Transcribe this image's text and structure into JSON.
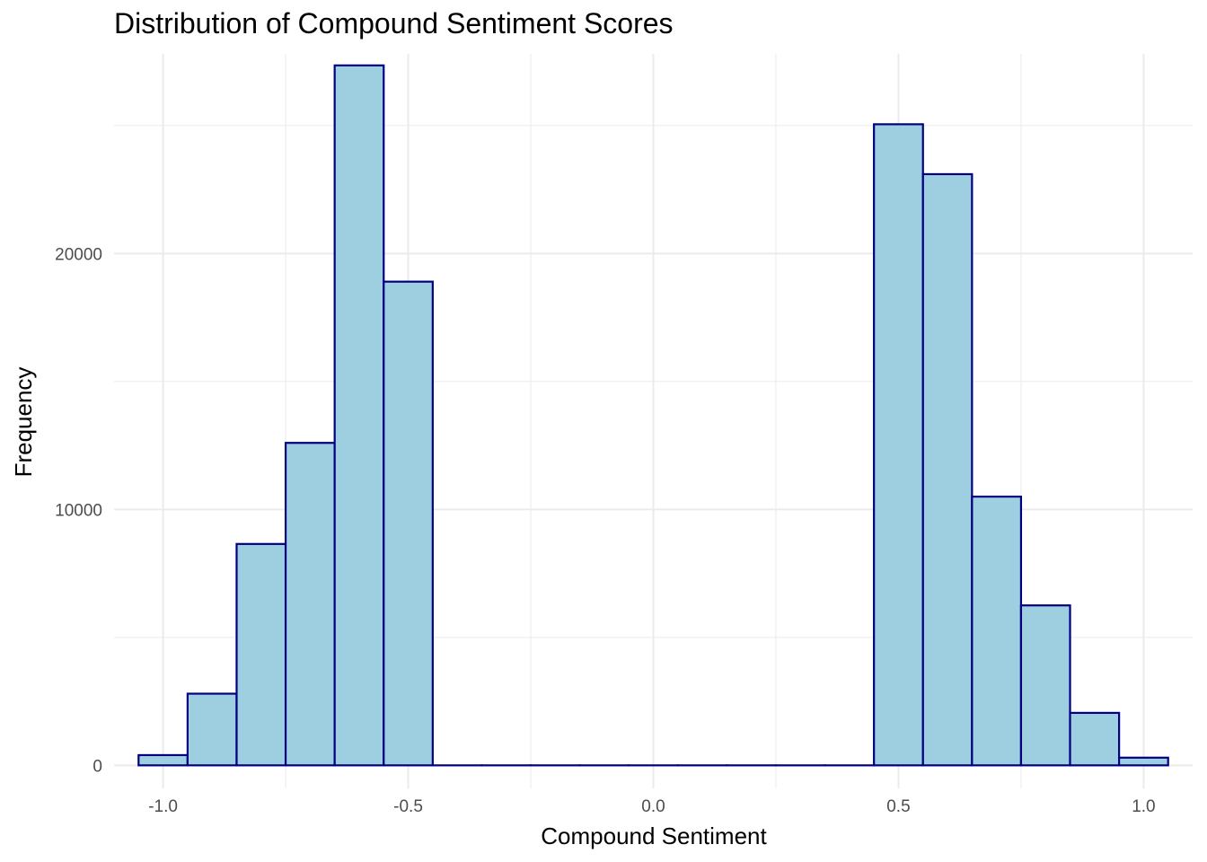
{
  "chart_data": {
    "type": "bar",
    "title": "Distribution of Compound Sentiment Scores",
    "xlabel": "Compound Sentiment",
    "ylabel": "Frequency",
    "xlim": [
      -1.1,
      1.1
    ],
    "ylim": [
      -900,
      27800
    ],
    "x_ticks": [
      -1.0,
      -0.5,
      0.0,
      0.5,
      1.0
    ],
    "x_tick_labels": [
      "-1.0",
      "-0.5",
      "0.0",
      "0.5",
      "1.0"
    ],
    "y_ticks": [
      0,
      10000,
      20000
    ],
    "y_tick_labels": [
      "0",
      "10000",
      "20000"
    ],
    "bin_width": 0.1,
    "bins": [
      {
        "x0": -1.05,
        "x1": -0.95,
        "count": 400
      },
      {
        "x0": -0.95,
        "x1": -0.85,
        "count": 2800
      },
      {
        "x0": -0.85,
        "x1": -0.75,
        "count": 8650
      },
      {
        "x0": -0.75,
        "x1": -0.65,
        "count": 12600
      },
      {
        "x0": -0.65,
        "x1": -0.55,
        "count": 27350
      },
      {
        "x0": -0.55,
        "x1": -0.45,
        "count": 18900
      },
      {
        "x0": -0.45,
        "x1": -0.35,
        "count": 0
      },
      {
        "x0": -0.35,
        "x1": -0.25,
        "count": 0
      },
      {
        "x0": -0.25,
        "x1": -0.15,
        "count": 0
      },
      {
        "x0": -0.15,
        "x1": -0.05,
        "count": 0
      },
      {
        "x0": -0.05,
        "x1": 0.05,
        "count": 0
      },
      {
        "x0": 0.05,
        "x1": 0.15,
        "count": 0
      },
      {
        "x0": 0.15,
        "x1": 0.25,
        "count": 0
      },
      {
        "x0": 0.25,
        "x1": 0.35,
        "count": 0
      },
      {
        "x0": 0.35,
        "x1": 0.45,
        "count": 0
      },
      {
        "x0": 0.45,
        "x1": 0.55,
        "count": 25050
      },
      {
        "x0": 0.55,
        "x1": 0.65,
        "count": 23100
      },
      {
        "x0": 0.65,
        "x1": 0.75,
        "count": 10500
      },
      {
        "x0": 0.75,
        "x1": 0.85,
        "count": 6250
      },
      {
        "x0": 0.85,
        "x1": 0.95,
        "count": 2050
      },
      {
        "x0": 0.95,
        "x1": 1.05,
        "count": 300
      }
    ],
    "grid": true,
    "fill_color": "#9ecfe1",
    "edge_color": "#000080",
    "grid_color": "#ebebeb"
  }
}
